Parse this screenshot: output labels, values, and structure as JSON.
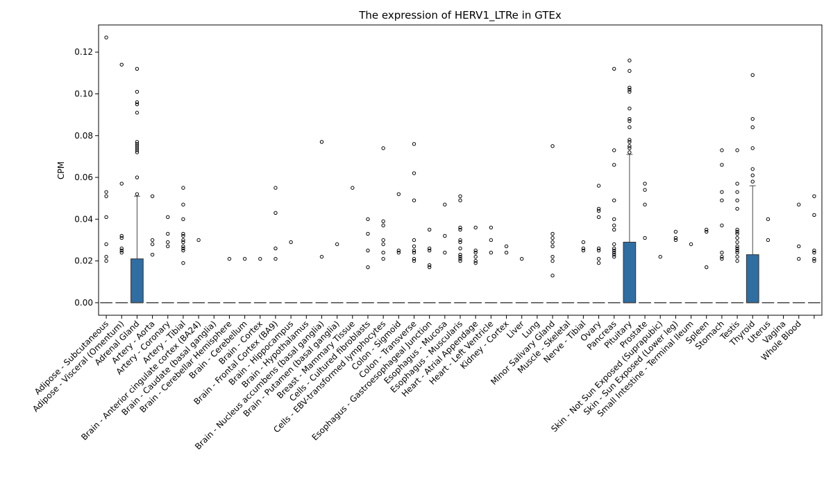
{
  "chart_data": {
    "type": "box",
    "title": "The expression of HERV1_LTRe in GTEx",
    "xlabel": "",
    "ylabel": "CPM",
    "ylim": [
      -0.006,
      0.133
    ],
    "yticks": [
      "0.00",
      "0.02",
      "0.04",
      "0.06",
      "0.08",
      "0.10",
      "0.12"
    ],
    "box_color": "#2f6ea3",
    "categories": [
      {
        "name": "Adipose - Subcutaneous",
        "q1": 0,
        "q3": 0,
        "whisker_high": 0,
        "outliers": [
          0.127,
          0.053,
          0.051,
          0.041,
          0.028,
          0.022,
          0.02
        ]
      },
      {
        "name": "Adipose - Visceral (Omentum)",
        "q1": 0,
        "q3": 0,
        "whisker_high": 0,
        "outliers": [
          0.114,
          0.057,
          0.032,
          0.031,
          0.026,
          0.025,
          0.024
        ]
      },
      {
        "name": "Adrenal Gland",
        "q1": 0,
        "q3": 0.021,
        "whisker_high": 0.051,
        "outliers": [
          0.112,
          0.101,
          0.096,
          0.095,
          0.091,
          0.077,
          0.076,
          0.075,
          0.074,
          0.073,
          0.072,
          0.06,
          0.052
        ]
      },
      {
        "name": "Artery - Aorta",
        "q1": 0,
        "q3": 0,
        "whisker_high": 0,
        "outliers": [
          0.051,
          0.03,
          0.028,
          0.023
        ]
      },
      {
        "name": "Artery - Coronary",
        "q1": 0,
        "q3": 0,
        "whisker_high": 0,
        "outliers": [
          0.041,
          0.033,
          0.029,
          0.027
        ]
      },
      {
        "name": "Artery - Tibial",
        "q1": 0,
        "q3": 0,
        "whisker_high": 0,
        "outliers": [
          0.055,
          0.047,
          0.04,
          0.033,
          0.032,
          0.03,
          0.029,
          0.027,
          0.026,
          0.025,
          0.019
        ]
      },
      {
        "name": "Brain - Anterior cingulate cortex (BA24)",
        "q1": 0,
        "q3": 0,
        "whisker_high": 0,
        "outliers": [
          0.03
        ]
      },
      {
        "name": "Brain - Caudate (basal ganglia)",
        "q1": 0,
        "q3": 0,
        "whisker_high": 0,
        "outliers": []
      },
      {
        "name": "Brain - Cerebellar Hemisphere",
        "q1": 0,
        "q3": 0,
        "whisker_high": 0,
        "outliers": [
          0.021
        ]
      },
      {
        "name": "Brain - Cerebellum",
        "q1": 0,
        "q3": 0,
        "whisker_high": 0,
        "outliers": [
          0.021
        ]
      },
      {
        "name": "Brain - Cortex",
        "q1": 0,
        "q3": 0,
        "whisker_high": 0,
        "outliers": [
          0.021
        ]
      },
      {
        "name": "Brain - Frontal Cortex (BA9)",
        "q1": 0,
        "q3": 0,
        "whisker_high": 0,
        "outliers": [
          0.055,
          0.043,
          0.026,
          0.021
        ]
      },
      {
        "name": "Brain - Hippocampus",
        "q1": 0,
        "q3": 0,
        "whisker_high": 0,
        "outliers": [
          0.029
        ]
      },
      {
        "name": "Brain - Hypothalamus",
        "q1": 0,
        "q3": 0,
        "whisker_high": 0,
        "outliers": []
      },
      {
        "name": "Brain - Nucleus accumbens (basal ganglia)",
        "q1": 0,
        "q3": 0,
        "whisker_high": 0,
        "outliers": [
          0.077,
          0.022
        ]
      },
      {
        "name": "Brain - Putamen (basal ganglia)",
        "q1": 0,
        "q3": 0,
        "whisker_high": 0,
        "outliers": [
          0.028
        ]
      },
      {
        "name": "Breast - Mammary Tissue",
        "q1": 0,
        "q3": 0,
        "whisker_high": 0,
        "outliers": [
          0.055
        ]
      },
      {
        "name": "Cells - Cultured fibroblasts",
        "q1": 0,
        "q3": 0,
        "whisker_high": 0,
        "outliers": [
          0.04,
          0.033,
          0.025,
          0.017
        ]
      },
      {
        "name": "Cells - EBV-transformed lymphocytes",
        "q1": 0,
        "q3": 0,
        "whisker_high": 0,
        "outliers": [
          0.074,
          0.039,
          0.037,
          0.03,
          0.028,
          0.024,
          0.021
        ]
      },
      {
        "name": "Colon - Sigmoid",
        "q1": 0,
        "q3": 0,
        "whisker_high": 0,
        "outliers": [
          0.052,
          0.025,
          0.024
        ]
      },
      {
        "name": "Colon - Transverse",
        "q1": 0,
        "q3": 0,
        "whisker_high": 0,
        "outliers": [
          0.076,
          0.062,
          0.049,
          0.03,
          0.027,
          0.025,
          0.024,
          0.021,
          0.02
        ]
      },
      {
        "name": "Esophagus - Gastroesophageal Junction",
        "q1": 0,
        "q3": 0,
        "whisker_high": 0,
        "outliers": [
          0.035,
          0.026,
          0.025,
          0.018,
          0.017
        ]
      },
      {
        "name": "Esophagus - Mucosa",
        "q1": 0,
        "q3": 0,
        "whisker_high": 0,
        "outliers": [
          0.047,
          0.032,
          0.024
        ]
      },
      {
        "name": "Esophagus - Muscularis",
        "q1": 0,
        "q3": 0,
        "whisker_high": 0,
        "outliers": [
          0.051,
          0.049,
          0.036,
          0.035,
          0.03,
          0.029,
          0.026,
          0.023,
          0.022,
          0.021,
          0.02
        ]
      },
      {
        "name": "Heart - Atrial Appendage",
        "q1": 0,
        "q3": 0,
        "whisker_high": 0,
        "outliers": [
          0.036,
          0.025,
          0.024,
          0.022,
          0.02,
          0.019
        ]
      },
      {
        "name": "Heart - Left Ventricle",
        "q1": 0,
        "q3": 0,
        "whisker_high": 0,
        "outliers": [
          0.036,
          0.03,
          0.024
        ]
      },
      {
        "name": "Kidney - Cortex",
        "q1": 0,
        "q3": 0,
        "whisker_high": 0,
        "outliers": [
          0.027,
          0.024
        ]
      },
      {
        "name": "Liver",
        "q1": 0,
        "q3": 0,
        "whisker_high": 0,
        "outliers": [
          0.021
        ]
      },
      {
        "name": "Lung",
        "q1": 0,
        "q3": 0,
        "whisker_high": 0,
        "outliers": []
      },
      {
        "name": "Minor Salivary Gland",
        "q1": 0,
        "q3": 0,
        "whisker_high": 0,
        "outliers": [
          0.075,
          0.033,
          0.031,
          0.029,
          0.027,
          0.022,
          0.02,
          0.013
        ]
      },
      {
        "name": "Muscle - Skeletal",
        "q1": 0,
        "q3": 0,
        "whisker_high": 0,
        "outliers": []
      },
      {
        "name": "Nerve - Tibial",
        "q1": 0,
        "q3": 0,
        "whisker_high": 0,
        "outliers": [
          0.029,
          0.026,
          0.025
        ]
      },
      {
        "name": "Ovary",
        "q1": 0,
        "q3": 0,
        "whisker_high": 0,
        "outliers": [
          0.056,
          0.045,
          0.044,
          0.041,
          0.026,
          0.025,
          0.021,
          0.019
        ]
      },
      {
        "name": "Pancreas",
        "q1": 0,
        "q3": 0,
        "whisker_high": 0,
        "outliers": [
          0.112,
          0.073,
          0.066,
          0.049,
          0.04,
          0.037,
          0.035,
          0.028,
          0.026,
          0.025,
          0.024,
          0.023,
          0.022
        ]
      },
      {
        "name": "Pituitary",
        "q1": 0,
        "q3": 0.029,
        "whisker_high": 0.071,
        "outliers": [
          0.116,
          0.111,
          0.103,
          0.102,
          0.101,
          0.093,
          0.088,
          0.087,
          0.084,
          0.078,
          0.077,
          0.075,
          0.074,
          0.072
        ]
      },
      {
        "name": "Prostate",
        "q1": 0,
        "q3": 0,
        "whisker_high": 0,
        "outliers": [
          0.057,
          0.054,
          0.047,
          0.031
        ]
      },
      {
        "name": "Skin - Not Sun Exposed (Suprapubic)",
        "q1": 0,
        "q3": 0,
        "whisker_high": 0,
        "outliers": [
          0.022
        ]
      },
      {
        "name": "Skin - Sun Exposed (Lower leg)",
        "q1": 0,
        "q3": 0,
        "whisker_high": 0,
        "outliers": [
          0.034,
          0.031,
          0.03
        ]
      },
      {
        "name": "Small Intestine - Terminal Ileum",
        "q1": 0,
        "q3": 0,
        "whisker_high": 0,
        "outliers": [
          0.028
        ]
      },
      {
        "name": "Spleen",
        "q1": 0,
        "q3": 0,
        "whisker_high": 0,
        "outliers": [
          0.035,
          0.034,
          0.017
        ]
      },
      {
        "name": "Stomach",
        "q1": 0,
        "q3": 0,
        "whisker_high": 0,
        "outliers": [
          0.073,
          0.066,
          0.053,
          0.049,
          0.037,
          0.024,
          0.022,
          0.021
        ]
      },
      {
        "name": "Testis",
        "q1": 0,
        "q3": 0,
        "whisker_high": 0,
        "outliers": [
          0.073,
          0.057,
          0.053,
          0.049,
          0.045,
          0.035,
          0.034,
          0.033,
          0.031,
          0.029,
          0.027,
          0.026,
          0.025,
          0.024,
          0.022,
          0.02
        ]
      },
      {
        "name": "Thyroid",
        "q1": 0,
        "q3": 0.023,
        "whisker_high": 0.056,
        "outliers": [
          0.109,
          0.088,
          0.084,
          0.074,
          0.064,
          0.061,
          0.058
        ]
      },
      {
        "name": "Uterus",
        "q1": 0,
        "q3": 0,
        "whisker_high": 0,
        "outliers": [
          0.04,
          0.03
        ]
      },
      {
        "name": "Vagina",
        "q1": 0,
        "q3": 0,
        "whisker_high": 0,
        "outliers": []
      },
      {
        "name": "Whole Blood",
        "q1": 0,
        "q3": 0,
        "whisker_high": 0,
        "outliers": [
          0.047,
          0.027,
          0.021
        ]
      },
      {
        "name": "",
        "q1": 0,
        "q3": 0,
        "whisker_high": 0,
        "outliers": [
          0.051,
          0.042,
          0.025,
          0.024,
          0.021,
          0.02
        ]
      }
    ]
  }
}
